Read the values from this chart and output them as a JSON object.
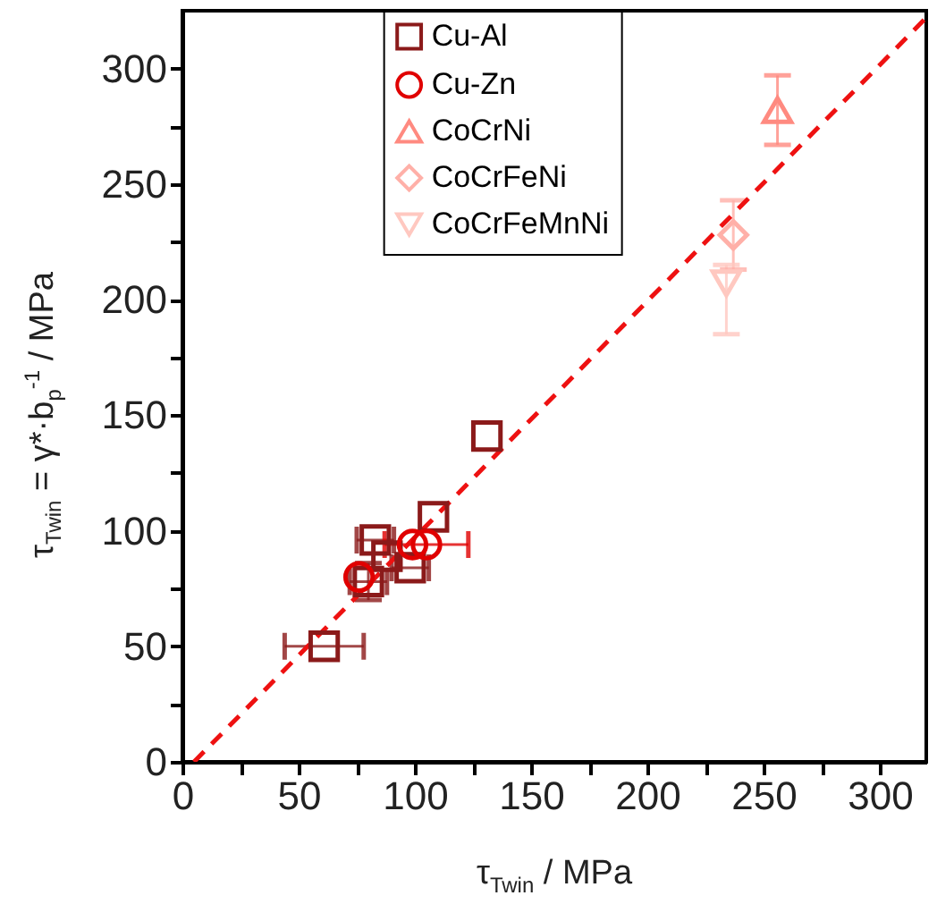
{
  "chart_data": {
    "type": "scatter",
    "xlabel": "τ$_{Twin}$ / MPa",
    "ylabel": "τ$_{Twin}$ = γ*·b$_{p}$$^{-1}$ / MPa",
    "xlim": [
      0,
      320
    ],
    "ylim": [
      0,
      325
    ],
    "xticks": [
      0,
      {
        "value": 25,
        "label": null
      },
      50,
      {
        "value": 75,
        "label": null
      },
      100,
      {
        "value": 125,
        "label": null
      },
      150,
      {
        "value": 175,
        "label": null
      },
      200,
      {
        "value": 225,
        "label": null
      },
      250,
      {
        "value": 275,
        "label": null
      },
      300
    ],
    "yticks": [
      0,
      {
        "value": 25,
        "label": null
      },
      50,
      {
        "value": 75,
        "label": null
      },
      100,
      {
        "value": 125,
        "label": null
      },
      150,
      {
        "value": 175,
        "label": null
      },
      200,
      {
        "value": 225,
        "label": null
      },
      250,
      {
        "value": 275,
        "label": null
      },
      300
    ],
    "grid": false,
    "legend": "top",
    "series": [
      {
        "name": "Cu-Al",
        "color": "#8b1a1a",
        "marker": "square",
        "x": [
          61,
          80,
          83,
          88,
          98,
          108,
          131
        ],
        "values": [
          50,
          78,
          96,
          89,
          84,
          106,
          141
        ],
        "xerrors": [
          17,
          8,
          8,
          null,
          8,
          null,
          null
        ],
        "errors": [
          null,
          8,
          null,
          null,
          null,
          null,
          null
        ]
      },
      {
        "name": "Cu-Zn",
        "color": "#e00000",
        "marker": "circle",
        "x": [
          76,
          99,
          105
        ],
        "values": [
          80,
          94,
          94
        ],
        "xerrors": [
          null,
          null,
          18
        ]
      },
      {
        "name": "CoCrNi",
        "color": "#ff8a80",
        "marker": "triangle",
        "x": [
          256
        ],
        "values": [
          282
        ],
        "errors": [
          [
            267,
            297
          ]
        ]
      },
      {
        "name": "CoCrFeNi",
        "color": "#ffb0a8",
        "marker": "diamond",
        "x": [
          237
        ],
        "values": [
          228
        ],
        "errors": [
          [
            213,
            243
          ]
        ]
      },
      {
        "name": "CoCrFeMnNi",
        "color": "#ffc8c0",
        "marker": "triangle-down",
        "x": [
          234
        ],
        "values": [
          207
        ],
        "errors": [
          [
            185,
            215
          ]
        ]
      },
      {
        "type": "line",
        "color": "#ee1111",
        "line_style": "dashed",
        "x": [
          5,
          320
        ],
        "values": [
          0,
          322
        ]
      }
    ]
  }
}
